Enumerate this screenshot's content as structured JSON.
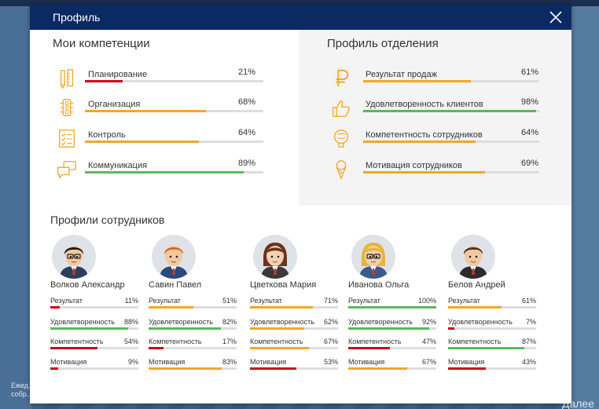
{
  "window": {
    "title": "Профиль"
  },
  "background": {
    "note": "Ежед... собр...",
    "more": "Далее"
  },
  "colors": {
    "header": "#0b2a63",
    "orange": "#f5a623",
    "green": "#5cb85c",
    "red": "#d0021b",
    "icon": "#f5a623"
  },
  "my_competencies": {
    "title": "Мои компетенции",
    "items": [
      {
        "label": "Планирование",
        "value": 21,
        "display": "21%",
        "color": "red",
        "icon": "pencil-ruler-icon"
      },
      {
        "label": "Организация",
        "value": 68,
        "display": "68%",
        "color": "orange",
        "icon": "traffic-light-icon"
      },
      {
        "label": "Контроль",
        "value": 64,
        "display": "64%",
        "color": "orange",
        "icon": "checklist-icon"
      },
      {
        "label": "Коммуникация",
        "value": 89,
        "display": "89%",
        "color": "green",
        "icon": "chat-bubbles-icon"
      }
    ]
  },
  "department": {
    "title": "Профиль отделения",
    "items": [
      {
        "label": "Результат продаж",
        "value": 61,
        "display": "61%",
        "color": "orange",
        "icon": "ruble-icon"
      },
      {
        "label": "Удовлетворенность клиентов",
        "value": 98,
        "display": "98%",
        "color": "green",
        "icon": "thumbs-up-icon"
      },
      {
        "label": "Компетентность сотрудников",
        "value": 64,
        "display": "64%",
        "color": "orange",
        "icon": "brain-icon"
      },
      {
        "label": "Мотивация сотрудников",
        "value": 69,
        "display": "69%",
        "color": "orange",
        "icon": "ice-cream-icon"
      }
    ]
  },
  "employees": {
    "title": "Профили сотрудников",
    "people": [
      {
        "name": "Волков Александр",
        "avatar": "male-glasses",
        "stats": [
          {
            "label": "Результат",
            "value": 11,
            "display": "11%",
            "color": "red"
          },
          {
            "label": "Удовлетворенность",
            "value": 88,
            "display": "88%",
            "color": "green"
          },
          {
            "label": "Компетентность",
            "value": 54,
            "display": "54%",
            "color": "red"
          },
          {
            "label": "Мотивация",
            "value": 9,
            "display": "9%",
            "color": "red"
          }
        ]
      },
      {
        "name": "Савин Павел",
        "avatar": "male-ginger",
        "stats": [
          {
            "label": "Результат",
            "value": 51,
            "display": "51%",
            "color": "orange"
          },
          {
            "label": "Удовлетворенность",
            "value": 82,
            "display": "82%",
            "color": "green"
          },
          {
            "label": "Компетентность",
            "value": 17,
            "display": "17%",
            "color": "red"
          },
          {
            "label": "Мотивация",
            "value": 83,
            "display": "83%",
            "color": "orange"
          }
        ]
      },
      {
        "name": "Цветкова Мария",
        "avatar": "female-brown",
        "stats": [
          {
            "label": "Результат",
            "value": 71,
            "display": "71%",
            "color": "orange"
          },
          {
            "label": "Удовлетворенность",
            "value": 62,
            "display": "62%",
            "color": "orange"
          },
          {
            "label": "Компетентность",
            "value": 67,
            "display": "67%",
            "color": "orange"
          },
          {
            "label": "Мотивация",
            "value": 53,
            "display": "53%",
            "color": "red"
          }
        ]
      },
      {
        "name": "Иванова Ольга",
        "avatar": "female-blonde",
        "stats": [
          {
            "label": "Результат",
            "value": 100,
            "display": "100%",
            "color": "green"
          },
          {
            "label": "Удовлетворенность",
            "value": 92,
            "display": "92%",
            "color": "green"
          },
          {
            "label": "Компетентность",
            "value": 47,
            "display": "47%",
            "color": "red"
          },
          {
            "label": "Мотивация",
            "value": 67,
            "display": "67%",
            "color": "orange"
          }
        ]
      },
      {
        "name": "Белов Андрей",
        "avatar": "male-brown",
        "stats": [
          {
            "label": "Результат",
            "value": 61,
            "display": "61%",
            "color": "orange"
          },
          {
            "label": "Удовлетворенность",
            "value": 7,
            "display": "7%",
            "color": "red"
          },
          {
            "label": "Компетентность",
            "value": 87,
            "display": "87%",
            "color": "green"
          },
          {
            "label": "Мотивация",
            "value": 43,
            "display": "43%",
            "color": "red"
          }
        ]
      }
    ]
  }
}
